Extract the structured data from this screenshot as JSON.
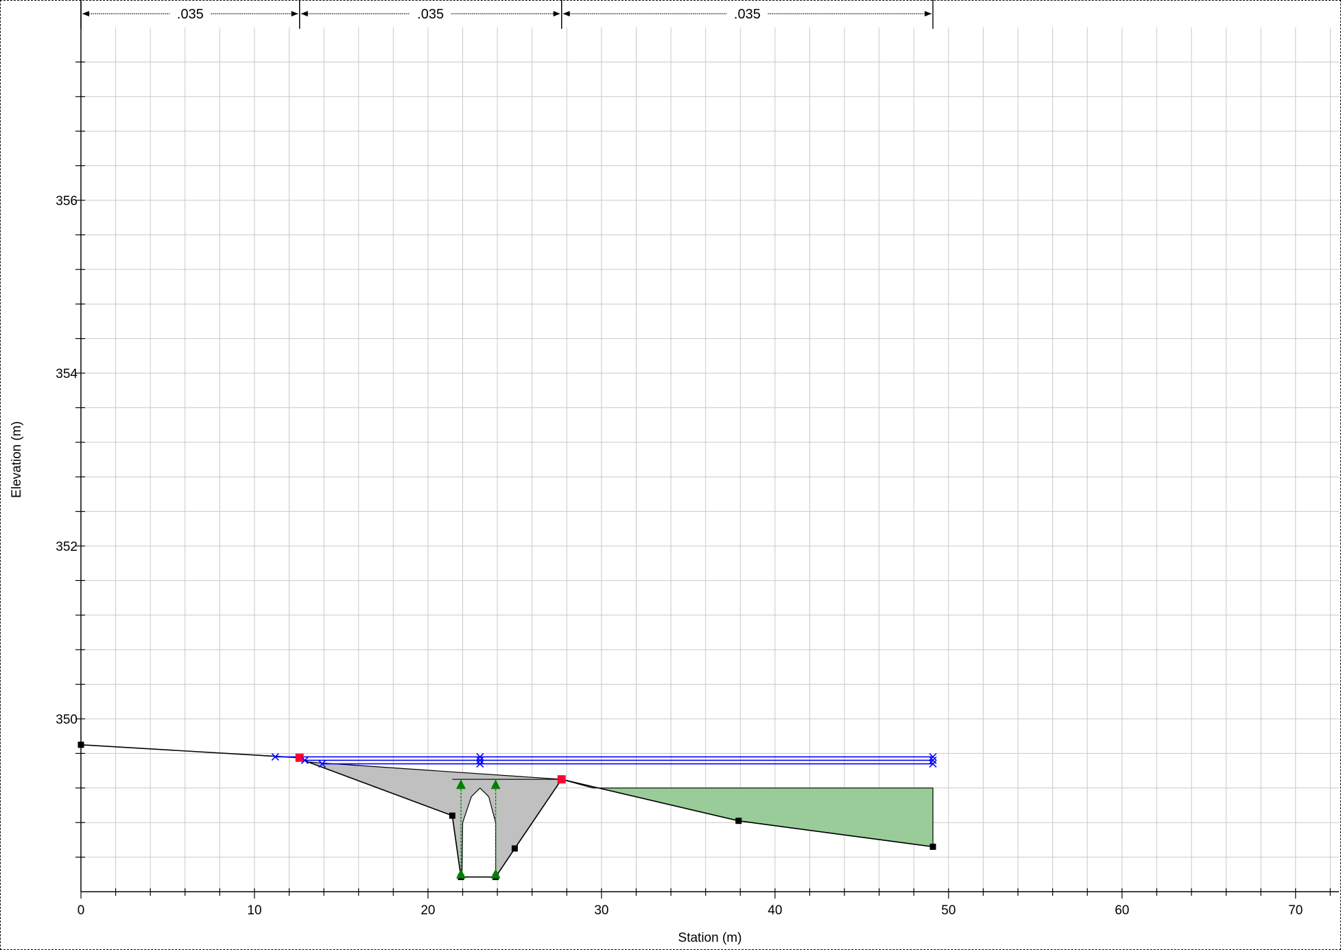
{
  "chart_data": {
    "type": "line",
    "title": "",
    "xlabel": "Station (m)",
    "ylabel": "Elevation (m)",
    "xlim": [
      0,
      72.5
    ],
    "ylim": [
      348,
      358
    ],
    "x_ticks": [
      0,
      10,
      20,
      30,
      40,
      50,
      60,
      70
    ],
    "y_ticks": [
      350,
      352,
      354,
      356
    ],
    "grid": true,
    "mannings_n": [
      {
        "label": ".035",
        "from": 0,
        "to": 12.6
      },
      {
        "label": ".035",
        "from": 12.6,
        "to": 27.7
      },
      {
        "label": ".035",
        "from": 27.7,
        "to": 49.1
      }
    ],
    "ground": {
      "x": [
        0,
        12.6,
        13.1,
        21.4,
        21.9,
        23.9,
        25.0,
        27.7,
        37.9,
        49.1
      ],
      "y": [
        349.7,
        349.55,
        349.5,
        348.88,
        348.17,
        348.17,
        348.5,
        349.3,
        348.82,
        348.52
      ]
    },
    "bank_stations": {
      "x": [
        12.6,
        27.7
      ],
      "y": [
        349.55,
        349.3
      ]
    },
    "culvert": {
      "deck_x": [
        13.1,
        27.7
      ],
      "deck_y": 349.3,
      "opening_x": [
        21.95,
        22.0,
        22.5,
        23.0,
        23.5,
        23.9
      ],
      "opening_y": [
        348.17,
        348.8,
        349.1,
        349.2,
        349.1,
        348.8
      ],
      "piers_x": [
        21.9,
        23.9
      ]
    },
    "ineffective_area": {
      "x": [
        27.7,
        29.5,
        49.1,
        49.1,
        37.9
      ],
      "y": [
        349.3,
        349.2,
        349.2,
        348.52,
        348.82
      ]
    },
    "water_surfaces": [
      {
        "x": [
          11.2,
          49.1
        ],
        "y": 349.56
      },
      {
        "x": [
          12.9,
          49.1
        ],
        "y": 349.52
      },
      {
        "x": [
          13.9,
          49.1
        ],
        "y": 349.48
      }
    ],
    "colors": {
      "ground": "#000000",
      "water": "#0000ff",
      "bank": "#ff0033",
      "culvert_fill": "#c0c0c0",
      "ineffective_fill": "#99cc99",
      "pier": "#008000",
      "grid": "#c8c8c8"
    }
  }
}
